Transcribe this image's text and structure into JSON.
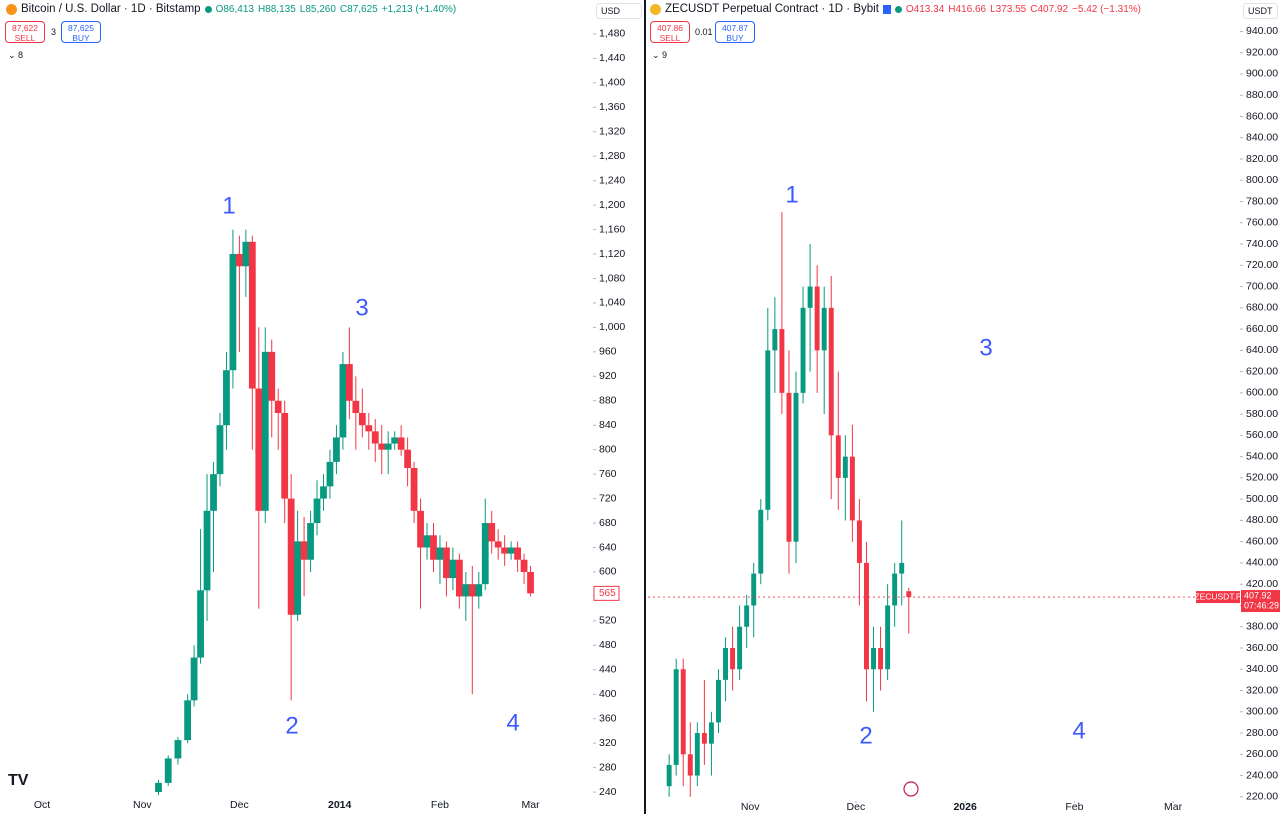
{
  "chart_data": [
    {
      "type": "candlestick",
      "header": {
        "symbol": "Bitcoin / U.S. Dollar · 1D · Bitstamp",
        "open": "O86,413",
        "high": "H88,135",
        "low": "L85,260",
        "close": "C87,625",
        "change": "+1,213 (+1.40%)",
        "sell_price": "87,622",
        "sell": "SELL",
        "spread": "3",
        "buy_price": "87,625",
        "buy": "BUY",
        "indicators": "8",
        "currency": "USD"
      },
      "annotations": [
        "1",
        "2",
        "3",
        "4"
      ],
      "up_color": "#089981",
      "down_color": "#f23645",
      "xlim": [
        -13,
        170
      ],
      "xticks": [
        {
          "value": 0,
          "label": "Oct"
        },
        {
          "value": 31,
          "label": "Nov"
        },
        {
          "value": 61,
          "label": "Dec"
        },
        {
          "value": 92,
          "label": "2014"
        },
        {
          "value": 123,
          "label": "Feb"
        },
        {
          "value": 151,
          "label": "Mar"
        }
      ],
      "ylim": [
        227,
        1493
      ],
      "yticks": [
        240,
        280,
        320,
        360,
        400,
        440,
        480,
        520,
        560,
        600,
        640,
        680,
        720,
        760,
        800,
        840,
        880,
        920,
        960,
        {
          "value": 1000,
          "label": "1,000"
        },
        {
          "value": 1040,
          "label": "1,040"
        },
        {
          "value": 1080,
          "label": "1,080"
        },
        {
          "value": 1120,
          "label": "1,120"
        },
        {
          "value": 1160,
          "label": "1,160"
        },
        {
          "value": 1200,
          "label": "1,200"
        },
        {
          "value": 1240,
          "label": "1,240"
        },
        {
          "value": 1280,
          "label": "1,280"
        },
        {
          "value": 1320,
          "label": "1,320"
        },
        {
          "value": 1360,
          "label": "1,360"
        },
        {
          "value": 1400,
          "label": "1,400"
        },
        {
          "value": 1440,
          "label": "1,440"
        },
        {
          "value": 1480,
          "label": "1,480"
        }
      ],
      "x": [
        36,
        39,
        42,
        45,
        47,
        49,
        51,
        53,
        55,
        57,
        59,
        61,
        63,
        65,
        67,
        69,
        71,
        73,
        75,
        77,
        79,
        81,
        83,
        85,
        87,
        89,
        91,
        93,
        95,
        97,
        99,
        101,
        103,
        105,
        107,
        109,
        111,
        113,
        115,
        117,
        119,
        121,
        123,
        125,
        127,
        129,
        131,
        133,
        135,
        137,
        139,
        141,
        143,
        145,
        147,
        149,
        151
      ],
      "open": [
        240,
        255,
        295,
        325,
        390,
        460,
        570,
        700,
        760,
        840,
        930,
        1120,
        1100,
        1140,
        900,
        700,
        960,
        880,
        860,
        720,
        530,
        650,
        620,
        680,
        720,
        740,
        780,
        820,
        940,
        880,
        860,
        840,
        830,
        810,
        800,
        810,
        820,
        800,
        770,
        700,
        640,
        660,
        620,
        640,
        590,
        620,
        560,
        580,
        560,
        580,
        680,
        650,
        640,
        630,
        640,
        620,
        600
      ],
      "high": [
        260,
        300,
        330,
        400,
        480,
        670,
        760,
        780,
        860,
        960,
        1160,
        1150,
        1160,
        1150,
        1000,
        1000,
        980,
        900,
        880,
        760,
        700,
        690,
        700,
        750,
        760,
        800,
        840,
        960,
        1000,
        920,
        900,
        860,
        850,
        840,
        830,
        830,
        840,
        820,
        780,
        720,
        680,
        680,
        660,
        650,
        640,
        630,
        600,
        610,
        600,
        720,
        700,
        670,
        660,
        650,
        650,
        630,
        610
      ],
      "low": [
        235,
        250,
        285,
        320,
        380,
        450,
        520,
        600,
        740,
        800,
        900,
        960,
        1050,
        800,
        540,
        680,
        820,
        800,
        680,
        390,
        520,
        560,
        600,
        660,
        700,
        720,
        760,
        800,
        850,
        800,
        820,
        800,
        780,
        760,
        760,
        800,
        790,
        740,
        680,
        540,
        620,
        600,
        580,
        560,
        570,
        540,
        520,
        400,
        540,
        570,
        630,
        620,
        610,
        620,
        600,
        580,
        560
      ],
      "close": [
        255,
        295,
        325,
        390,
        460,
        570,
        700,
        760,
        840,
        930,
        1120,
        1100,
        1140,
        900,
        700,
        960,
        880,
        860,
        720,
        530,
        650,
        620,
        680,
        720,
        740,
        780,
        820,
        940,
        880,
        860,
        840,
        830,
        810,
        800,
        810,
        820,
        800,
        770,
        700,
        640,
        660,
        620,
        640,
        590,
        620,
        560,
        580,
        560,
        580,
        680,
        650,
        640,
        630,
        640,
        620,
        600,
        565
      ]
    },
    {
      "type": "candlestick",
      "header": {
        "symbol": "ZECUSDT Perpetual Contract · 1D · Bybit",
        "open": "O413.34",
        "high": "H416.66",
        "low": "L373.55",
        "close": "C407.92",
        "change": "−5.42 (−1.31%)",
        "sell_price": "407.86",
        "sell": "SELL",
        "spread": "0.01",
        "buy_price": "407.87",
        "buy": "BUY",
        "indicators": "9",
        "currency": "USDT",
        "ticker": "ZECUSDT.P",
        "countdown": "07:46:29"
      },
      "annotations": [
        "1",
        "2",
        "3",
        "4"
      ],
      "up_color": "#089981",
      "down_color": "#f23645",
      "xlim": [
        2,
        170
      ],
      "xticks": [
        {
          "value": 31,
          "label": "Nov"
        },
        {
          "value": 61,
          "label": "Dec"
        },
        {
          "value": 92,
          "label": "2026"
        },
        {
          "value": 123,
          "label": "Feb"
        },
        {
          "value": 151,
          "label": "Mar"
        }
      ],
      "ylim": [
        217,
        947
      ],
      "yticks": [
        {
          "value": 220,
          "label": "220.00"
        },
        {
          "value": 240,
          "label": "240.00"
        },
        {
          "value": 260,
          "label": "260.00"
        },
        {
          "value": 280,
          "label": "280.00"
        },
        {
          "value": 300,
          "label": "300.00"
        },
        {
          "value": 320,
          "label": "320.00"
        },
        {
          "value": 340,
          "label": "340.00"
        },
        {
          "value": 360,
          "label": "360.00"
        },
        {
          "value": 380,
          "label": "380.00"
        },
        {
          "value": 400,
          "label": "400.00"
        },
        {
          "value": 420,
          "label": "420.00"
        },
        {
          "value": 440,
          "label": "440.00"
        },
        {
          "value": 460,
          "label": "460.00"
        },
        {
          "value": 480,
          "label": "480.00"
        },
        {
          "value": 500,
          "label": "500.00"
        },
        {
          "value": 520,
          "label": "520.00"
        },
        {
          "value": 540,
          "label": "540.00"
        },
        {
          "value": 560,
          "label": "560.00"
        },
        {
          "value": 580,
          "label": "580.00"
        },
        {
          "value": 600,
          "label": "600.00"
        },
        {
          "value": 620,
          "label": "620.00"
        },
        {
          "value": 640,
          "label": "640.00"
        },
        {
          "value": 660,
          "label": "660.00"
        },
        {
          "value": 680,
          "label": "680.00"
        },
        {
          "value": 700,
          "label": "700.00"
        },
        {
          "value": 720,
          "label": "720.00"
        },
        {
          "value": 740,
          "label": "740.00"
        },
        {
          "value": 760,
          "label": "760.00"
        },
        {
          "value": 780,
          "label": "780.00"
        },
        {
          "value": 800,
          "label": "800.00"
        },
        {
          "value": 820,
          "label": "820.00"
        },
        {
          "value": 840,
          "label": "840.00"
        },
        {
          "value": 860,
          "label": "860.00"
        },
        {
          "value": 880,
          "label": "880.00"
        },
        {
          "value": 900,
          "label": "900.00"
        },
        {
          "value": 920,
          "label": "920.00"
        },
        {
          "value": 940,
          "label": "940.00"
        }
      ],
      "x": [
        8,
        10,
        12,
        14,
        16,
        18,
        20,
        22,
        24,
        26,
        28,
        30,
        32,
        34,
        36,
        38,
        40,
        42,
        44,
        46,
        48,
        50,
        52,
        54,
        56,
        58,
        60,
        62,
        64,
        66,
        68,
        70,
        72,
        74,
        76
      ],
      "open": [
        230,
        250,
        340,
        260,
        240,
        280,
        270,
        290,
        330,
        360,
        340,
        380,
        400,
        430,
        490,
        640,
        660,
        600,
        460,
        600,
        680,
        700,
        640,
        680,
        560,
        520,
        540,
        480,
        440,
        340,
        360,
        340,
        400,
        430,
        413.34
      ],
      "high": [
        260,
        350,
        350,
        290,
        290,
        330,
        300,
        340,
        370,
        380,
        400,
        410,
        440,
        500,
        680,
        690,
        770,
        640,
        620,
        700,
        740,
        720,
        700,
        710,
        620,
        560,
        570,
        500,
        460,
        380,
        380,
        420,
        440,
        480,
        416.66
      ],
      "low": [
        220,
        240,
        230,
        220,
        230,
        250,
        240,
        280,
        310,
        320,
        330,
        360,
        370,
        420,
        480,
        600,
        580,
        430,
        440,
        590,
        620,
        600,
        580,
        500,
        490,
        480,
        460,
        400,
        310,
        300,
        320,
        330,
        380,
        400,
        373.55
      ],
      "close": [
        250,
        340,
        260,
        240,
        280,
        270,
        290,
        330,
        360,
        340,
        380,
        400,
        430,
        490,
        640,
        660,
        600,
        460,
        600,
        680,
        700,
        640,
        680,
        560,
        520,
        540,
        480,
        440,
        340,
        360,
        340,
        400,
        430,
        440,
        407.92
      ]
    }
  ]
}
